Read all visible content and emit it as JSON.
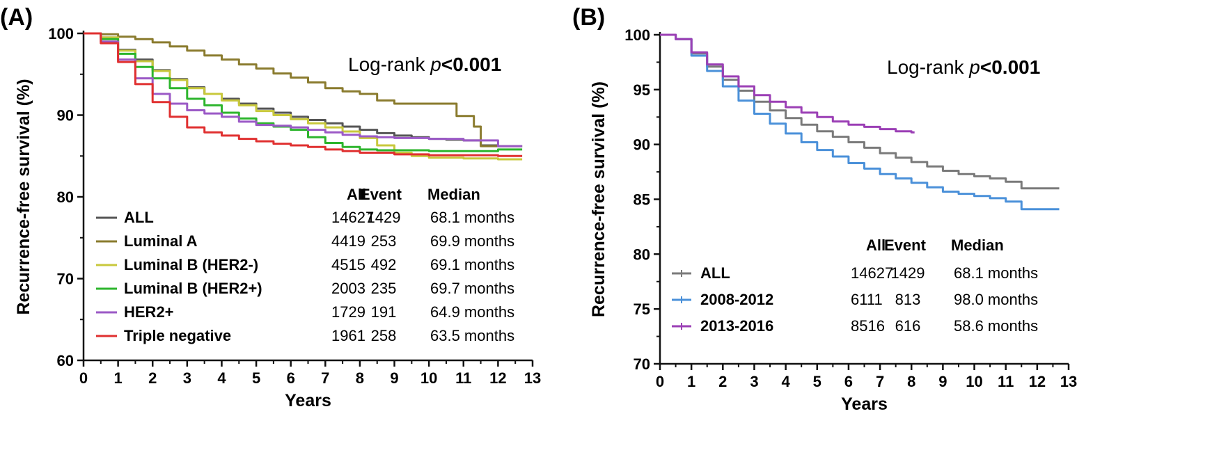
{
  "chart_data": [
    {
      "panel": "(A)",
      "type": "line",
      "title": "",
      "xlabel": "Years",
      "ylabel": "Recurrence-free survival (%)",
      "xlim": [
        0,
        13
      ],
      "ylim": [
        60,
        100
      ],
      "xticks": [
        "0",
        "1",
        "2",
        "3",
        "4",
        "5",
        "6",
        "7",
        "8",
        "9",
        "10",
        "11",
        "12",
        "13"
      ],
      "yticks": [
        "60",
        "70",
        "80",
        "90",
        "100"
      ],
      "annotation": {
        "prefix": "Log-rank ",
        "italic": "p",
        "bold": "<0.001"
      },
      "table_headers": {
        "all": "All",
        "event": "Event",
        "median": "Median"
      },
      "series": [
        {
          "name": "ALL",
          "color": "#555555",
          "all": "14627",
          "event": "1429",
          "median": "68.1 months",
          "x": [
            0,
            0.5,
            1,
            1.5,
            2,
            2.5,
            3,
            3.5,
            4,
            4.5,
            5,
            5.5,
            6,
            6.5,
            7,
            7.5,
            8,
            8.5,
            9,
            9.5,
            10,
            10.5,
            11,
            11.5,
            12,
            12.7
          ],
          "y": [
            100,
            99.5,
            98.0,
            96.8,
            95.5,
            94.4,
            93.4,
            92.6,
            92.0,
            91.4,
            90.8,
            90.3,
            89.8,
            89.4,
            89.0,
            88.6,
            88.2,
            87.8,
            87.5,
            87.3,
            87.1,
            87.0,
            86.9,
            86.3,
            86.2,
            86.2
          ]
        },
        {
          "name": "Luminal A",
          "color": "#8a7b2e",
          "all": "4419",
          "event": "253",
          "median": "69.9 months",
          "x": [
            0,
            0.5,
            1,
            1.5,
            2,
            2.5,
            3,
            3.5,
            4,
            4.5,
            5,
            5.5,
            6,
            6.5,
            7,
            7.5,
            8,
            8.5,
            9,
            9.5,
            10,
            10.5,
            10.8,
            10.8,
            11.3,
            11.5,
            11.5,
            12,
            12.7
          ],
          "y": [
            100,
            99.9,
            99.6,
            99.3,
            98.9,
            98.4,
            97.9,
            97.3,
            96.8,
            96.2,
            95.7,
            95.1,
            94.6,
            94.0,
            93.3,
            92.9,
            92.6,
            91.8,
            91.4,
            91.4,
            91.4,
            91.4,
            91.4,
            89.9,
            88.6,
            88.6,
            86.2,
            86.2,
            86.2
          ]
        },
        {
          "name": "Luminal B (HER2-)",
          "color": "#c8c83c",
          "all": "4515",
          "event": "492",
          "median": "69.1 months",
          "x": [
            0,
            0.5,
            1,
            1.5,
            2,
            2.5,
            3,
            3.5,
            4,
            4.5,
            5,
            5.5,
            6,
            6.5,
            7,
            7.5,
            8,
            8.5,
            9,
            9.5,
            10,
            11,
            12,
            12.7
          ],
          "y": [
            100,
            99.5,
            97.9,
            96.6,
            95.4,
            94.3,
            93.3,
            92.6,
            91.8,
            91.2,
            90.5,
            90.0,
            89.5,
            89.0,
            88.5,
            88.0,
            87.2,
            86.3,
            85.4,
            85.0,
            84.8,
            84.7,
            84.6,
            84.6
          ]
        },
        {
          "name": "Luminal B (HER2+)",
          "color": "#2db52d",
          "all": "2003",
          "event": "235",
          "median": "69.7 months",
          "x": [
            0,
            0.5,
            1,
            1.5,
            2,
            2.5,
            3,
            3.5,
            4,
            4.5,
            5,
            5.5,
            6,
            6.5,
            7,
            7.5,
            8,
            8.5,
            9,
            10,
            11,
            12,
            12.7
          ],
          "y": [
            100,
            99.3,
            97.5,
            95.9,
            94.5,
            93.3,
            92.0,
            91.2,
            90.3,
            89.6,
            89.0,
            88.6,
            88.2,
            87.3,
            86.6,
            86.1,
            85.8,
            85.7,
            85.7,
            85.6,
            85.6,
            85.8,
            85.8
          ]
        },
        {
          "name": "HER2+",
          "color": "#9b59c6",
          "all": "1729",
          "event": "191",
          "median": "64.9 months",
          "x": [
            0,
            0.5,
            1,
            1.5,
            2,
            2.5,
            3,
            3.5,
            4,
            4.5,
            5,
            5.5,
            6,
            6.5,
            7,
            7.5,
            8,
            8.5,
            9,
            10,
            11,
            12,
            12.7
          ],
          "y": [
            100,
            99.0,
            96.8,
            94.5,
            92.6,
            91.4,
            90.6,
            90.2,
            89.8,
            89.2,
            88.8,
            88.7,
            88.5,
            88.2,
            87.9,
            87.6,
            87.4,
            87.3,
            87.2,
            87.1,
            86.9,
            86.2,
            86.2
          ]
        },
        {
          "name": "Triple negative",
          "color": "#e03030",
          "all": "1961",
          "event": "258",
          "median": "63.5 months",
          "x": [
            0,
            0.5,
            1,
            1.5,
            2,
            2.5,
            3,
            3.5,
            4,
            4.5,
            5,
            5.5,
            6,
            6.5,
            7,
            7.5,
            8,
            9,
            10,
            11,
            12,
            12.7
          ],
          "y": [
            100,
            98.8,
            96.5,
            93.8,
            91.6,
            89.8,
            88.5,
            87.9,
            87.5,
            87.1,
            86.8,
            86.5,
            86.3,
            86.1,
            85.8,
            85.6,
            85.4,
            85.2,
            85.1,
            85.1,
            85.0,
            85.0
          ]
        }
      ]
    },
    {
      "panel": "(B)",
      "type": "line",
      "title": "",
      "xlabel": "Years",
      "ylabel": "Recurrence-free survival (%)",
      "xlim": [
        0,
        13
      ],
      "ylim": [
        70,
        100
      ],
      "xticks": [
        "0",
        "1",
        "2",
        "3",
        "4",
        "5",
        "6",
        "7",
        "8",
        "9",
        "10",
        "11",
        "12",
        "13"
      ],
      "yticks": [
        "70",
        "75",
        "80",
        "85",
        "90",
        "95",
        "100"
      ],
      "annotation": {
        "prefix": "Log-rank ",
        "italic": "p",
        "bold": "<0.001"
      },
      "table_headers": {
        "all": "All",
        "event": "Event",
        "median": "Median"
      },
      "series": [
        {
          "name": "ALL",
          "color": "#7a7a7a",
          "all": "14627",
          "event": "1429",
          "median": "68.1 months",
          "x": [
            0,
            0.5,
            1,
            1.5,
            2,
            2.5,
            3,
            3.5,
            4,
            4.5,
            5,
            5.5,
            6,
            6.5,
            7,
            7.5,
            8,
            8.5,
            9,
            9.5,
            10,
            10.5,
            11,
            11.5,
            12,
            12.7
          ],
          "y": [
            100,
            99.6,
            98.3,
            97.1,
            95.9,
            94.9,
            93.9,
            93.1,
            92.4,
            91.8,
            91.2,
            90.7,
            90.2,
            89.7,
            89.2,
            88.8,
            88.4,
            88.0,
            87.6,
            87.3,
            87.1,
            86.9,
            86.6,
            86.0,
            86.0,
            86.0
          ]
        },
        {
          "name": "2008-2012",
          "color": "#4a90d9",
          "all": "6111",
          "event": "813",
          "median": "98.0 months",
          "x": [
            0,
            0.5,
            1,
            1.5,
            2,
            2.5,
            3,
            3.5,
            4,
            4.5,
            5,
            5.5,
            6,
            6.5,
            7,
            7.5,
            8,
            8.5,
            9,
            9.5,
            10,
            10.5,
            11,
            11.5,
            12,
            12.7
          ],
          "y": [
            100,
            99.6,
            98.1,
            96.7,
            95.3,
            94.0,
            92.8,
            91.9,
            91.0,
            90.2,
            89.5,
            88.9,
            88.3,
            87.8,
            87.3,
            86.9,
            86.5,
            86.1,
            85.7,
            85.5,
            85.3,
            85.1,
            84.8,
            84.1,
            84.1,
            84.1
          ]
        },
        {
          "name": "2013-2016",
          "color": "#9b3fb5",
          "all": "8516",
          "event": "616",
          "median": "58.6 months",
          "x": [
            0,
            0.5,
            1,
            1.5,
            2,
            2.5,
            3,
            3.5,
            4,
            4.5,
            5,
            5.5,
            6,
            6.5,
            7,
            7.5,
            8,
            8.1
          ],
          "y": [
            100,
            99.6,
            98.4,
            97.3,
            96.2,
            95.3,
            94.5,
            93.9,
            93.4,
            92.9,
            92.5,
            92.1,
            91.8,
            91.6,
            91.4,
            91.2,
            91.1,
            91.1
          ]
        }
      ]
    }
  ]
}
